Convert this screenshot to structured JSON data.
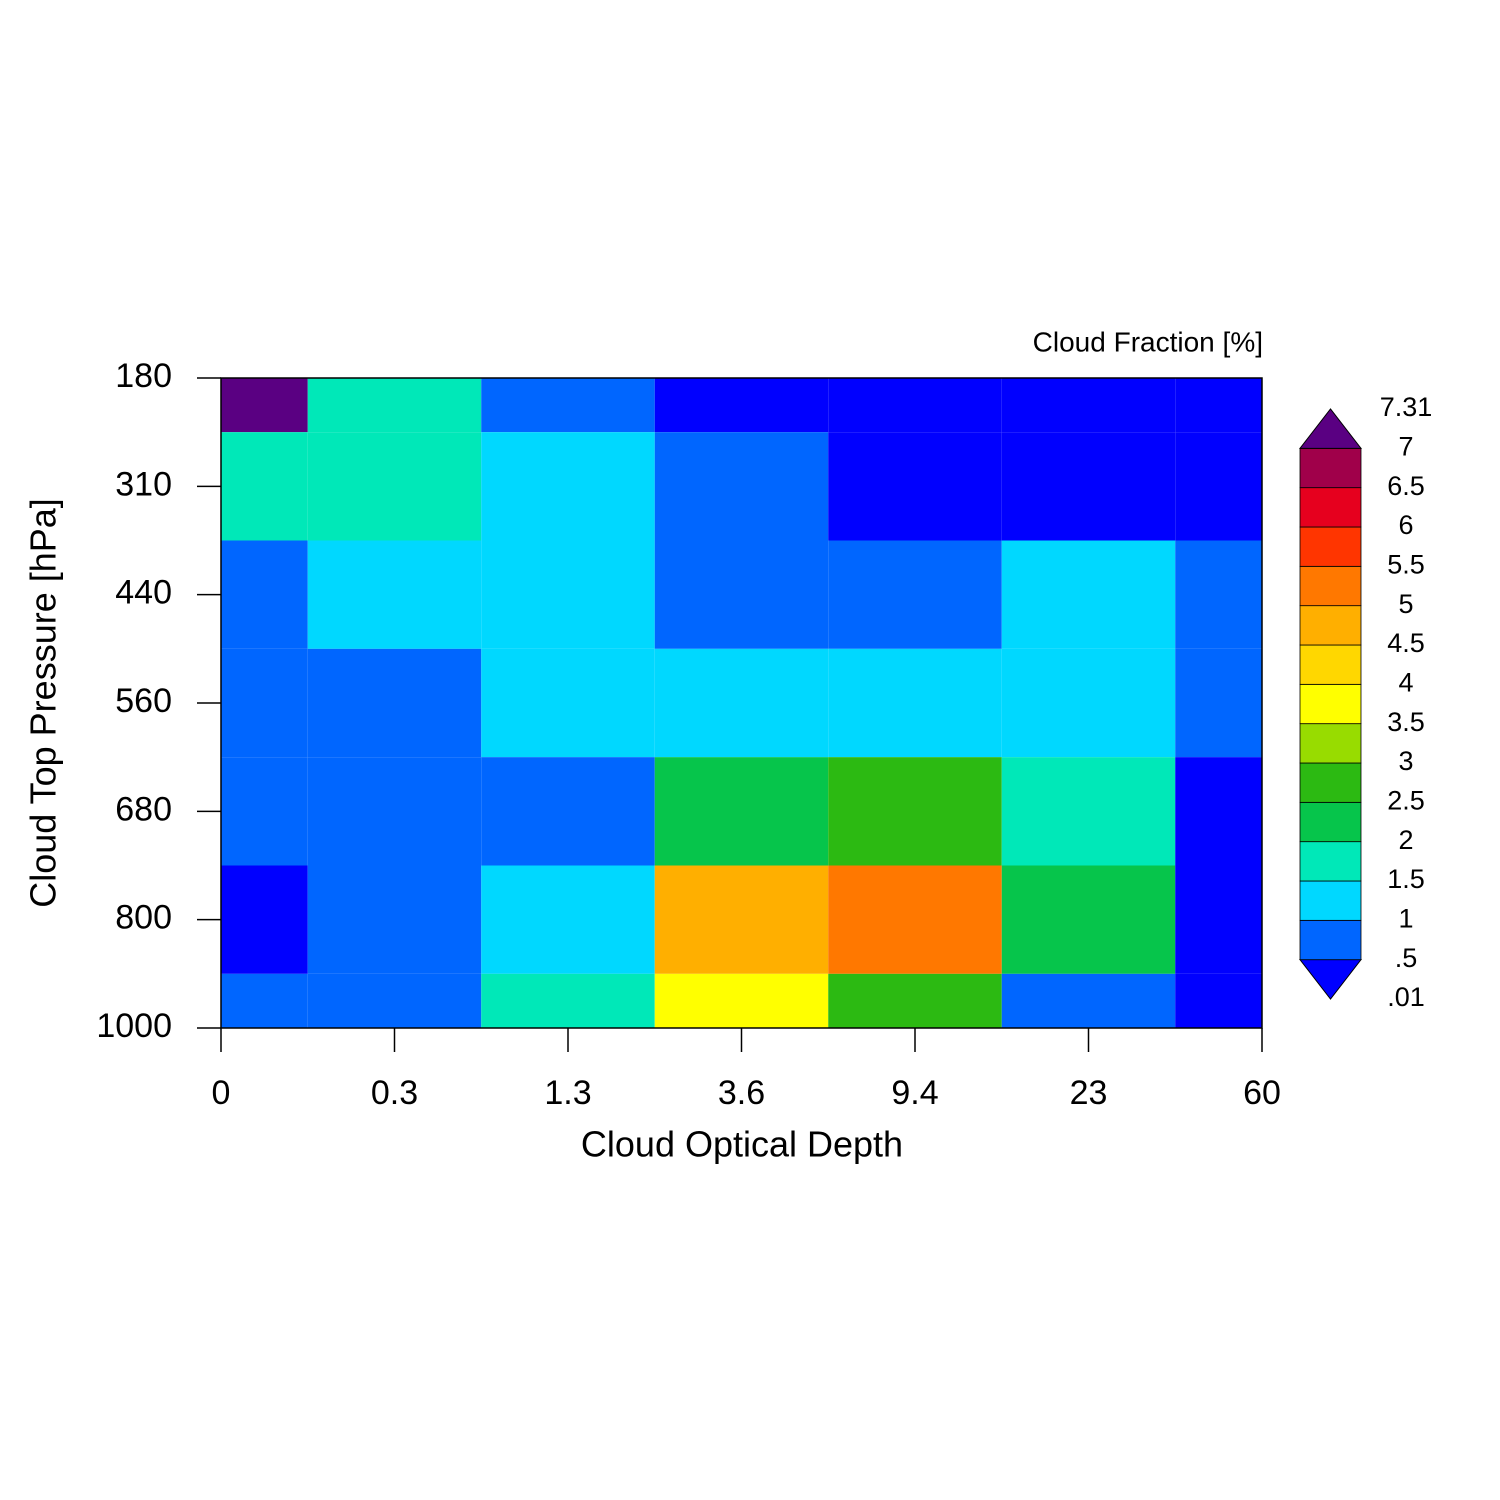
{
  "chart_data": {
    "type": "heatmap",
    "title": "Cloud Fraction [%]",
    "x_label": "Cloud Optical Depth",
    "y_label": "Cloud Top Pressure [hPa]",
    "x_categories": [
      "0",
      "0.3",
      "1.3",
      "3.6",
      "9.4",
      "23",
      "60"
    ],
    "y_categories": [
      "180",
      "310",
      "440",
      "560",
      "680",
      "800",
      "1000"
    ],
    "values": [
      [
        7.31,
        1.75,
        0.75,
        0.25,
        0.25,
        0.25,
        0.25
      ],
      [
        1.75,
        1.75,
        1.25,
        0.75,
        0.25,
        0.25,
        0.25
      ],
      [
        0.75,
        1.25,
        1.25,
        0.75,
        0.75,
        1.25,
        0.75
      ],
      [
        0.75,
        0.75,
        1.25,
        1.25,
        1.25,
        1.25,
        0.75
      ],
      [
        0.75,
        0.75,
        0.75,
        2.25,
        2.75,
        1.75,
        0.25
      ],
      [
        0.25,
        0.75,
        1.25,
        4.75,
        5.25,
        2.25,
        0.25
      ],
      [
        0.75,
        0.75,
        1.75,
        3.75,
        2.75,
        0.75,
        0.25
      ]
    ],
    "colorbar": {
      "levels": [
        {
          "value": 0.01,
          "label": ".01"
        },
        {
          "value": 0.5,
          "label": ".5"
        },
        1,
        1.5,
        2,
        2.5,
        3,
        3.5,
        4,
        4.5,
        5,
        5.5,
        6,
        6.5,
        7,
        7.31
      ],
      "colors": [
        "#0000ff",
        "#0066ff",
        "#00d8ff",
        "#00e8b8",
        "#06c54b",
        "#2cba12",
        "#98dc00",
        "#ffff00",
        "#ffd700",
        "#ffaf00",
        "#ff7800",
        "#ff3500",
        "#e6001e",
        "#a0004a",
        "#5a0082"
      ]
    }
  }
}
